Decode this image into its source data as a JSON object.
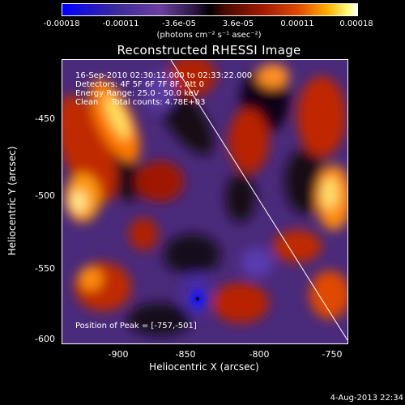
{
  "colorbar": {
    "ticks": [
      "-0.00018",
      "-0.00011",
      "-3.6e-05",
      "3.6e-05",
      "0.00011",
      "0.00018"
    ],
    "unit": "(photons cm⁻² s⁻¹ asec⁻²)"
  },
  "title": "Reconstructed RHESSI Image",
  "info": {
    "line1": "16-Sep-2010 02:30:12.000 to 02:33:22.000",
    "line2": "Detectors: 4F 5F 6F 7F 8F, Att 0",
    "line3": "Energy Range: 25.0 - 50.0 keV",
    "line4": "Clean     Total counts: 4.78E+03",
    "peak": "Position of Peak = [-757,-501]"
  },
  "axes": {
    "xlabel": "Heliocentric X (arcsec)",
    "ylabel": "Heliocentric Y (arcsec)",
    "xticks": [
      "-900",
      "-850",
      "-800",
      "-750"
    ],
    "yticks": [
      "-450",
      "-500",
      "-550",
      "-600"
    ]
  },
  "timestamp": "4-Aug-2013 22:34"
}
